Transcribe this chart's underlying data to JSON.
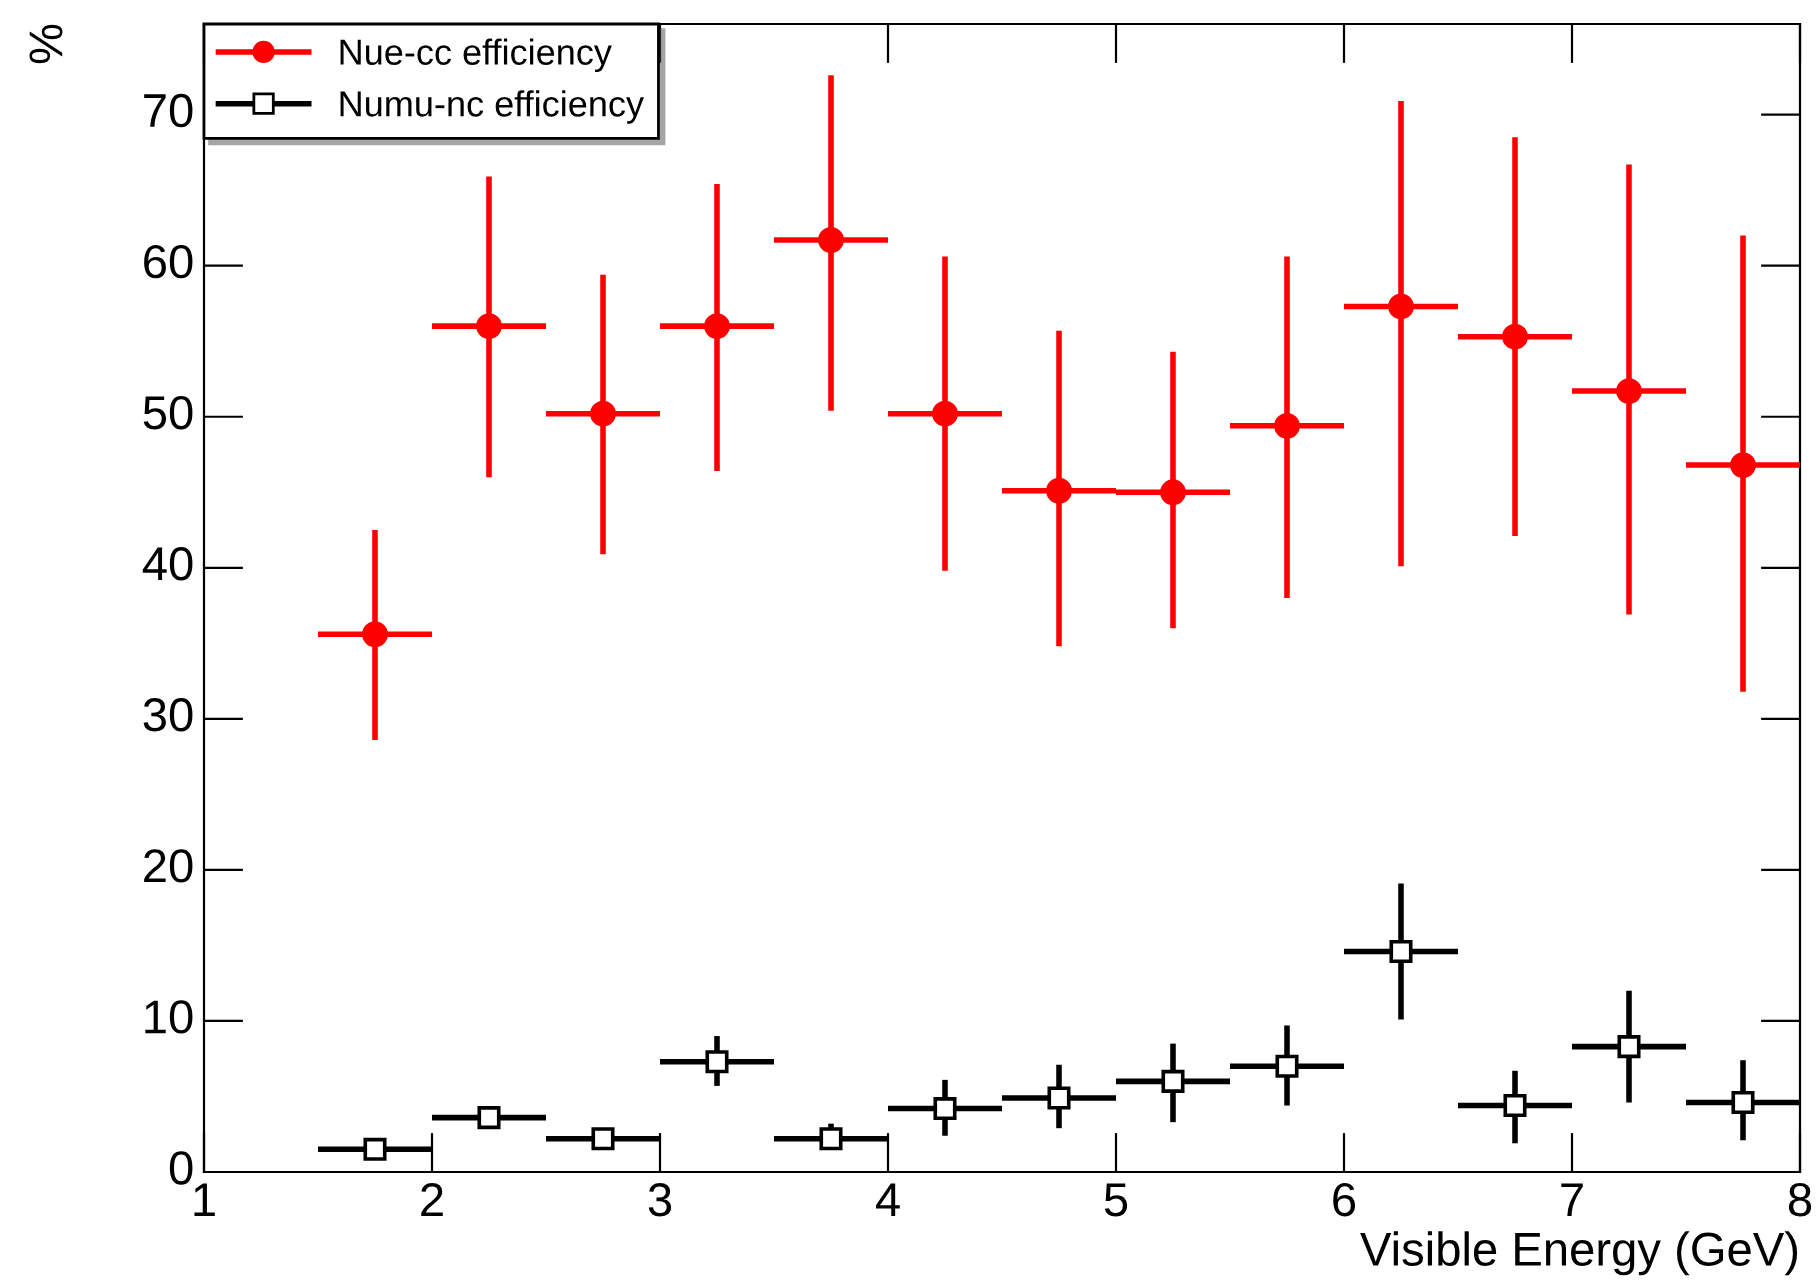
{
  "chart_data": {
    "type": "scatter",
    "xlabel": "Visible Energy (GeV)",
    "ylabel": "%",
    "xlim": [
      1,
      8
    ],
    "xticks": [
      1,
      2,
      3,
      4,
      5,
      6,
      7,
      8
    ],
    "ylim": [
      0,
      76
    ],
    "yticks": [
      0,
      10,
      20,
      30,
      40,
      50,
      60,
      70
    ],
    "grid": false,
    "legend": "top left",
    "x": [
      1.75,
      2.25,
      2.75,
      3.25,
      3.75,
      4.25,
      4.75,
      5.25,
      5.75,
      6.25,
      6.75,
      7.25,
      7.75
    ],
    "series": [
      {
        "name": "Nue-cc efficiency",
        "color": "#ff0000",
        "marker": "circle",
        "values": [
          35.6,
          56,
          50.2,
          56,
          61.7,
          50.2,
          45.1,
          45,
          49.4,
          57.3,
          55.3,
          51.7,
          46.8
        ],
        "errors": [
          [
            28.6,
            42.5
          ],
          [
            46,
            65.9
          ],
          [
            40.9,
            59.4
          ],
          [
            46.4,
            65.4
          ],
          [
            50.4,
            72.6
          ],
          [
            39.8,
            60.6
          ],
          [
            34.8,
            55.7
          ],
          [
            36,
            54.3
          ],
          [
            38,
            60.6
          ],
          [
            40.1,
            70.9
          ],
          [
            42.1,
            68.5
          ],
          [
            36.9,
            66.7
          ],
          [
            31.8,
            62
          ]
        ],
        "xerrors": [
          [
            1.5,
            2
          ],
          [
            2,
            2.5
          ],
          [
            2.5,
            3
          ],
          [
            3,
            3.5
          ],
          [
            3.5,
            4
          ],
          [
            4,
            4.5
          ],
          [
            4.5,
            5
          ],
          [
            5,
            5.5
          ],
          [
            5.5,
            6
          ],
          [
            6,
            6.5
          ],
          [
            6.5,
            7
          ],
          [
            7,
            7.5
          ],
          [
            7.5,
            8
          ]
        ]
      },
      {
        "name": "Numu-nc efficiency",
        "color": "#000000",
        "marker": "square",
        "values": [
          1.5,
          3.6,
          2.2,
          7.3,
          2.2,
          4.2,
          4.9,
          6,
          7,
          14.6,
          4.4,
          8.3,
          4.6
        ],
        "errors": [
          null,
          null,
          null,
          [
            5.7,
            9
          ],
          [
            1.5,
            3.2
          ],
          [
            2.4,
            6.1
          ],
          [
            2.9,
            7.1
          ],
          [
            3.3,
            8.5
          ],
          [
            4.4,
            9.7
          ],
          [
            10.1,
            19.1
          ],
          [
            1.9,
            6.7
          ],
          [
            4.6,
            12
          ],
          [
            2.1,
            7.4
          ]
        ],
        "xerrors": [
          [
            1.5,
            2
          ],
          [
            2,
            2.5
          ],
          [
            2.5,
            3
          ],
          [
            3,
            3.5
          ],
          [
            3.5,
            4
          ],
          [
            4,
            4.5
          ],
          [
            4.5,
            5
          ],
          [
            5,
            5.5
          ],
          [
            5.5,
            6
          ],
          [
            6,
            6.5
          ],
          [
            6.5,
            7
          ],
          [
            7,
            7.5
          ],
          [
            7.5,
            8
          ]
        ]
      }
    ]
  }
}
